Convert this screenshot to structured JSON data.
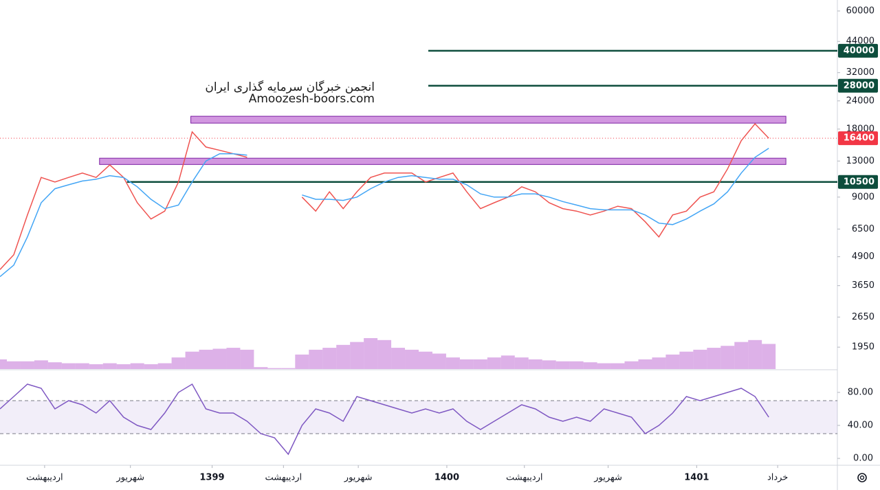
{
  "chart_data": {
    "type": "line",
    "watermark": [
      "انجمن خبرگان سرمایه گذاری ایران",
      "Amoozesh-boors.com"
    ],
    "xlim": [
      0,
      61
    ],
    "xticks": [
      {
        "value": 3.25,
        "label": "اردیبهشت"
      },
      {
        "value": 9.5,
        "label": "شهریور"
      },
      {
        "value": 15.45,
        "label": "1399"
      },
      {
        "value": 20.65,
        "label": "اردیبهشت"
      },
      {
        "value": 26.1,
        "label": "شهریور"
      },
      {
        "value": 32.55,
        "label": "1400"
      },
      {
        "value": 38.2,
        "label": "اردیبهشت"
      },
      {
        "value": 44.3,
        "label": "شهریور"
      },
      {
        "value": 50.75,
        "label": "1401"
      },
      {
        "value": 56.65,
        "label": "خرداد"
      }
    ],
    "log_scale": true,
    "ylim": [
      1560,
      67100
    ],
    "yticks": [
      60000,
      44000,
      32000,
      24000,
      18000,
      13000,
      9000,
      6500,
      4900,
      3650,
      2650,
      1950
    ],
    "series": [
      {
        "color": "#ef5350",
        "values": [
          4300,
          5000,
          7500,
          11000,
          10500,
          11000,
          11500,
          11000,
          12500,
          11000,
          8500,
          7200,
          7800,
          10500,
          17500,
          15000,
          14500,
          14000,
          13500,
          null,
          null,
          null,
          9000,
          7800,
          9500,
          8000,
          9500,
          11000,
          11500,
          11500,
          11500,
          10500,
          11000,
          11500,
          9500,
          8000,
          8500,
          9000,
          10000,
          9500,
          8500,
          8000,
          7800,
          7500,
          7800,
          8200,
          8000,
          7000,
          6000,
          7500,
          7800,
          9000,
          9500,
          12000,
          16000,
          19000,
          16400
        ]
      },
      {
        "color": "#42a5f5",
        "values": [
          4000,
          4500,
          6000,
          8500,
          9800,
          10200,
          10600,
          10800,
          11200,
          11000,
          10000,
          8800,
          8000,
          8300,
          10500,
          13000,
          14000,
          14000,
          13800,
          null,
          null,
          null,
          9200,
          8800,
          8800,
          8700,
          9000,
          9800,
          10500,
          11000,
          11200,
          11000,
          10800,
          10800,
          10200,
          9300,
          9000,
          9000,
          9300,
          9300,
          9000,
          8600,
          8300,
          8000,
          7900,
          7900,
          7900,
          7500,
          6900,
          6800,
          7200,
          7800,
          8400,
          9500,
          11500,
          13500,
          14800
        ]
      }
    ],
    "volume": {
      "color": "#c77dd8",
      "values": [
        10,
        8,
        8,
        9,
        7,
        6,
        6,
        5,
        6,
        5,
        6,
        5,
        6,
        12,
        18,
        20,
        21,
        22,
        20,
        2,
        1,
        1,
        15,
        20,
        22,
        25,
        28,
        32,
        30,
        22,
        20,
        18,
        16,
        12,
        10,
        10,
        12,
        14,
        12,
        10,
        9,
        8,
        8,
        7,
        6,
        6,
        8,
        10,
        12,
        15,
        18,
        20,
        22,
        24,
        28,
        30,
        26
      ]
    },
    "levels": [
      {
        "value": 40000,
        "x_start": 31.2,
        "color": "#0d4d3c"
      },
      {
        "value": 28000,
        "x_start": 31.2,
        "color": "#0d4d3c"
      },
      {
        "value": 10500,
        "x_start": 9.25,
        "color": "#0d4d3c"
      },
      {
        "value": 16400,
        "x_start": 0,
        "color": "#f23645",
        "dotted": true
      }
    ],
    "zones": [
      {
        "low": 19130,
        "high": 20520,
        "x_start": 13.9,
        "x_end": 57.25,
        "color": "#c77dd8"
      },
      {
        "low": 12550,
        "high": 13380,
        "x_start": 7.25,
        "x_end": 57.25,
        "color": "#c77dd8"
      }
    ],
    "rsi": {
      "color": "#7e57c2",
      "values": [
        60,
        75,
        90,
        85,
        60,
        70,
        65,
        55,
        70,
        50,
        40,
        35,
        55,
        80,
        90,
        60,
        55,
        55,
        45,
        30,
        25,
        5,
        40,
        60,
        55,
        45,
        75,
        70,
        65,
        60,
        55,
        60,
        55,
        60,
        45,
        35,
        45,
        55,
        65,
        60,
        50,
        45,
        50,
        45,
        60,
        55,
        50,
        30,
        40,
        55,
        75,
        70,
        75,
        80,
        85,
        75,
        50
      ],
      "ylim": [
        -8.3,
        105.8
      ],
      "yticks": [
        {
          "value": 80,
          "label": "80.00"
        },
        {
          "value": 40,
          "label": "40.00"
        },
        {
          "value": 0,
          "label": "0.00"
        }
      ],
      "band": [
        30,
        70
      ]
    }
  }
}
